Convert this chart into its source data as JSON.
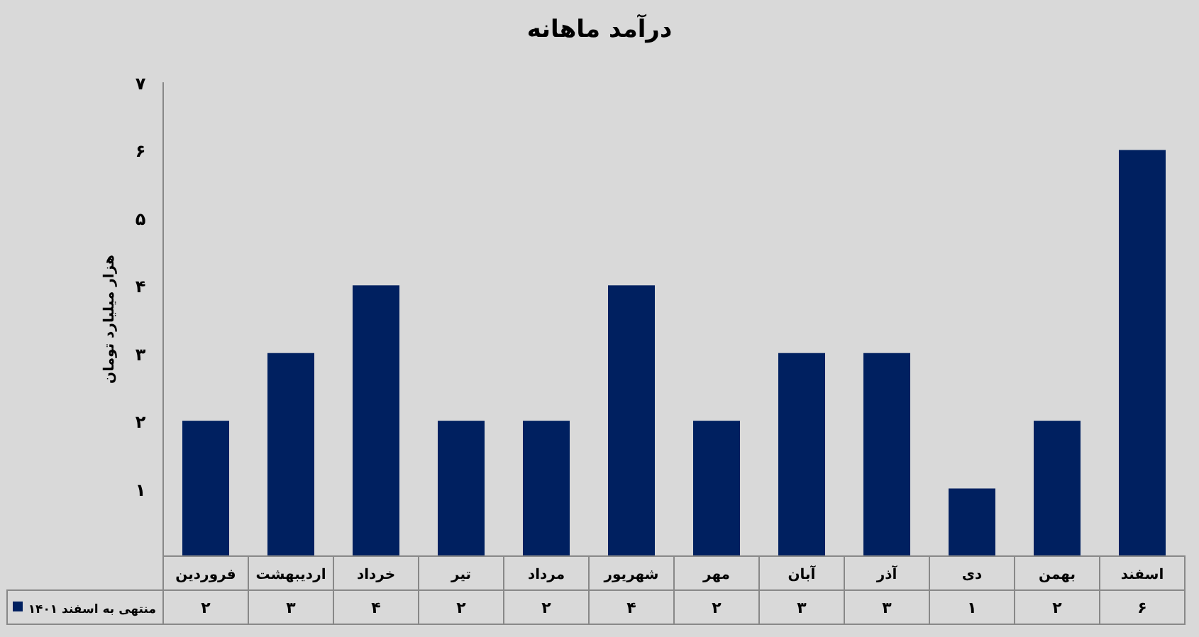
{
  "chart_data": {
    "type": "bar",
    "title": "درآمد ماهانه",
    "ylabel": "هزار میلیارد تومان",
    "categories": [
      "فروردین",
      "اردیبهشت",
      "خرداد",
      "تیر",
      "مرداد",
      "شهریور",
      "مهر",
      "آبان",
      "آذر",
      "دی",
      "بهمن",
      "اسفند"
    ],
    "series": [
      {
        "name": "منتهی به اسفند ۱۴۰۱",
        "color": "#002060",
        "values": [
          2,
          3,
          4,
          2,
          2,
          4,
          2,
          3,
          3,
          1,
          2,
          6
        ],
        "value_labels": [
          "۲",
          "۳",
          "۴",
          "۲",
          "۲",
          "۴",
          "۲",
          "۳",
          "۳",
          "۱",
          "۲",
          "۶"
        ]
      }
    ],
    "ylim": [
      0,
      7
    ],
    "yticks": [
      {
        "value": 1,
        "label": "۱"
      },
      {
        "value": 2,
        "label": "۲"
      },
      {
        "value": 3,
        "label": "۳"
      },
      {
        "value": 4,
        "label": "۴"
      },
      {
        "value": 5,
        "label": "۵"
      },
      {
        "value": 6,
        "label": "۶"
      },
      {
        "value": 7,
        "label": "۷"
      }
    ],
    "legend": "bottom",
    "grid": false
  }
}
